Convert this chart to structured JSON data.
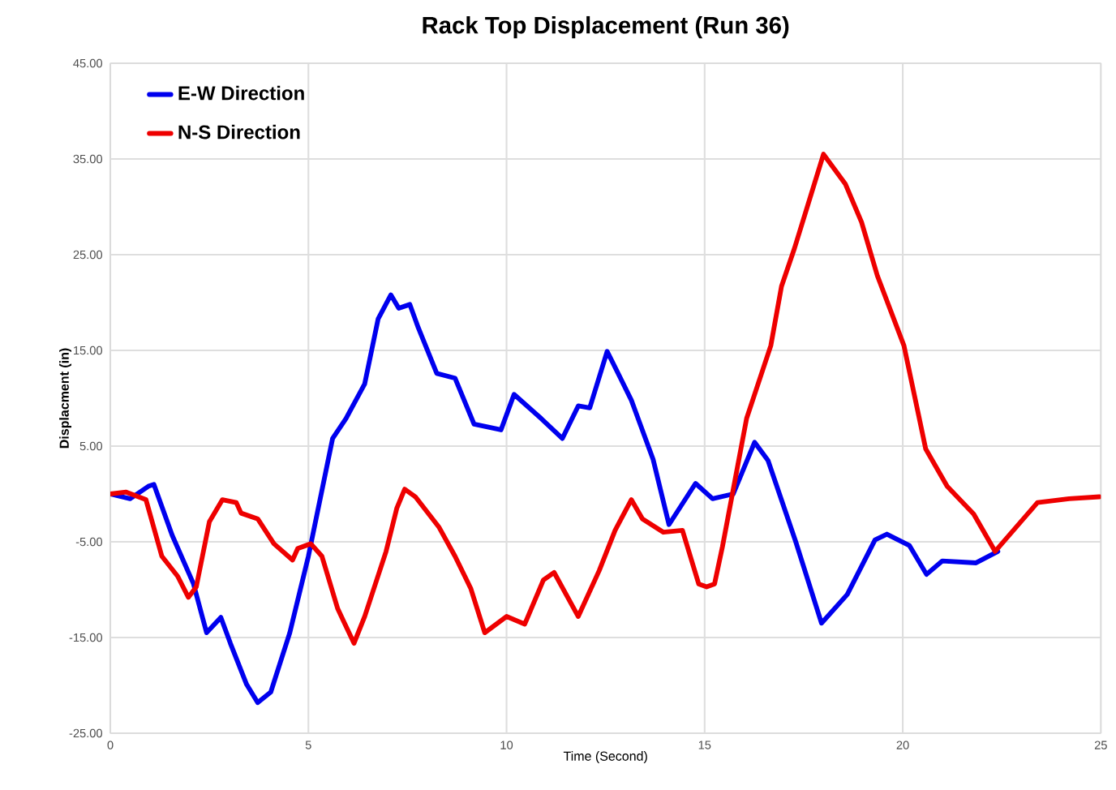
{
  "chart_data": {
    "type": "line",
    "title": "Rack Top Displacement (Run 36)",
    "xlabel": "Time (Second)",
    "ylabel": "Displacment (in)",
    "xlim": [
      0,
      25
    ],
    "xticks": [
      0,
      5,
      10,
      15,
      20,
      25
    ],
    "ylim": [
      -25,
      45
    ],
    "yticks": [
      {
        "value": -25,
        "label": "-25.00"
      },
      {
        "value": -15,
        "label": "-15.00"
      },
      {
        "value": -5,
        "label": "-5.00"
      },
      {
        "value": 5,
        "label": "5.00"
      },
      {
        "value": 15,
        "label": "15.00"
      },
      {
        "value": 25,
        "label": "25.00"
      },
      {
        "value": 35,
        "label": "35.00"
      },
      {
        "value": 45,
        "label": "45.00"
      }
    ],
    "grid": true,
    "legend": "top left",
    "marker": "none",
    "line_style": "solid",
    "series": [
      {
        "name": "E-W Direction",
        "color": "#0000ee",
        "x": [
          0,
          0.5,
          0.96,
          1.1,
          1.56,
          2.1,
          2.43,
          2.79,
          3.03,
          3.44,
          3.72,
          4.05,
          4.53,
          5.0,
          5.61,
          5.95,
          6.42,
          6.76,
          7.08,
          7.28,
          7.56,
          7.77,
          8.24,
          8.7,
          9.18,
          9.86,
          10.19,
          10.87,
          11.41,
          11.81,
          12.1,
          12.54,
          13.15,
          13.7,
          14.1,
          14.77,
          15.2,
          15.72,
          16.26,
          16.6,
          17.3,
          17.95,
          18.6,
          19.3,
          19.6,
          20.17,
          20.6,
          21.0,
          21.85,
          22.4
        ],
        "values": [
          0,
          -0.5,
          0.8,
          1,
          -4.3,
          -9.4,
          -14.5,
          -12.9,
          -15.6,
          -19.9,
          -21.8,
          -20.7,
          -14.5,
          -6.5,
          5.8,
          7.9,
          11.5,
          18.3,
          20.8,
          19.4,
          19.8,
          17.4,
          12.6,
          12.1,
          7.3,
          6.7,
          10.4,
          7.9,
          5.8,
          9.2,
          9.0,
          14.9,
          9.8,
          3.6,
          -3.2,
          1.1,
          -0.5,
          0,
          5.4,
          3.5,
          -5,
          -13.5,
          -10.5,
          -4.8,
          -4.2,
          -5.4,
          -8.4,
          -7,
          -7.2,
          -6
        ]
      },
      {
        "name": "N-S Direction",
        "color": "#ee0000",
        "x": [
          0,
          0.4,
          0.9,
          1.3,
          1.7,
          1.97,
          2.17,
          2.5,
          2.83,
          3.18,
          3.3,
          3.72,
          4.13,
          4.6,
          4.73,
          5.06,
          5.34,
          5.74,
          6.15,
          6.42,
          6.96,
          7.23,
          7.43,
          7.7,
          8.3,
          8.7,
          9.1,
          9.45,
          10.0,
          10.46,
          10.93,
          11.2,
          11.81,
          12.34,
          12.74,
          13.15,
          13.43,
          13.96,
          14.44,
          14.85,
          15.05,
          15.25,
          15.45,
          16.06,
          16.67,
          16.94,
          17.27,
          18.0,
          18.55,
          18.96,
          19.36,
          20.03,
          20.58,
          21.12,
          21.79,
          22.33,
          23.4,
          24.2,
          24.96
        ],
        "values": [
          0,
          0.2,
          -0.6,
          -6.5,
          -8.6,
          -10.8,
          -9.7,
          -2.9,
          -0.6,
          -0.9,
          -2,
          -2.6,
          -5.2,
          -6.9,
          -5.7,
          -5.2,
          -6.5,
          -12,
          -15.6,
          -12.8,
          -6,
          -1.5,
          0.5,
          -0.3,
          -3.5,
          -6.5,
          -9.9,
          -14.5,
          -12.8,
          -13.6,
          -9,
          -8.2,
          -12.8,
          -8,
          -3.8,
          -0.6,
          -2.6,
          -4,
          -3.8,
          -9.4,
          -9.7,
          -9.4,
          -5.5,
          7.9,
          15.5,
          21.7,
          25.7,
          35.5,
          32.4,
          28.4,
          22.8,
          15.5,
          4.7,
          0.8,
          -2.1,
          -6,
          -0.9,
          -0.5,
          -0.3
        ]
      }
    ]
  }
}
